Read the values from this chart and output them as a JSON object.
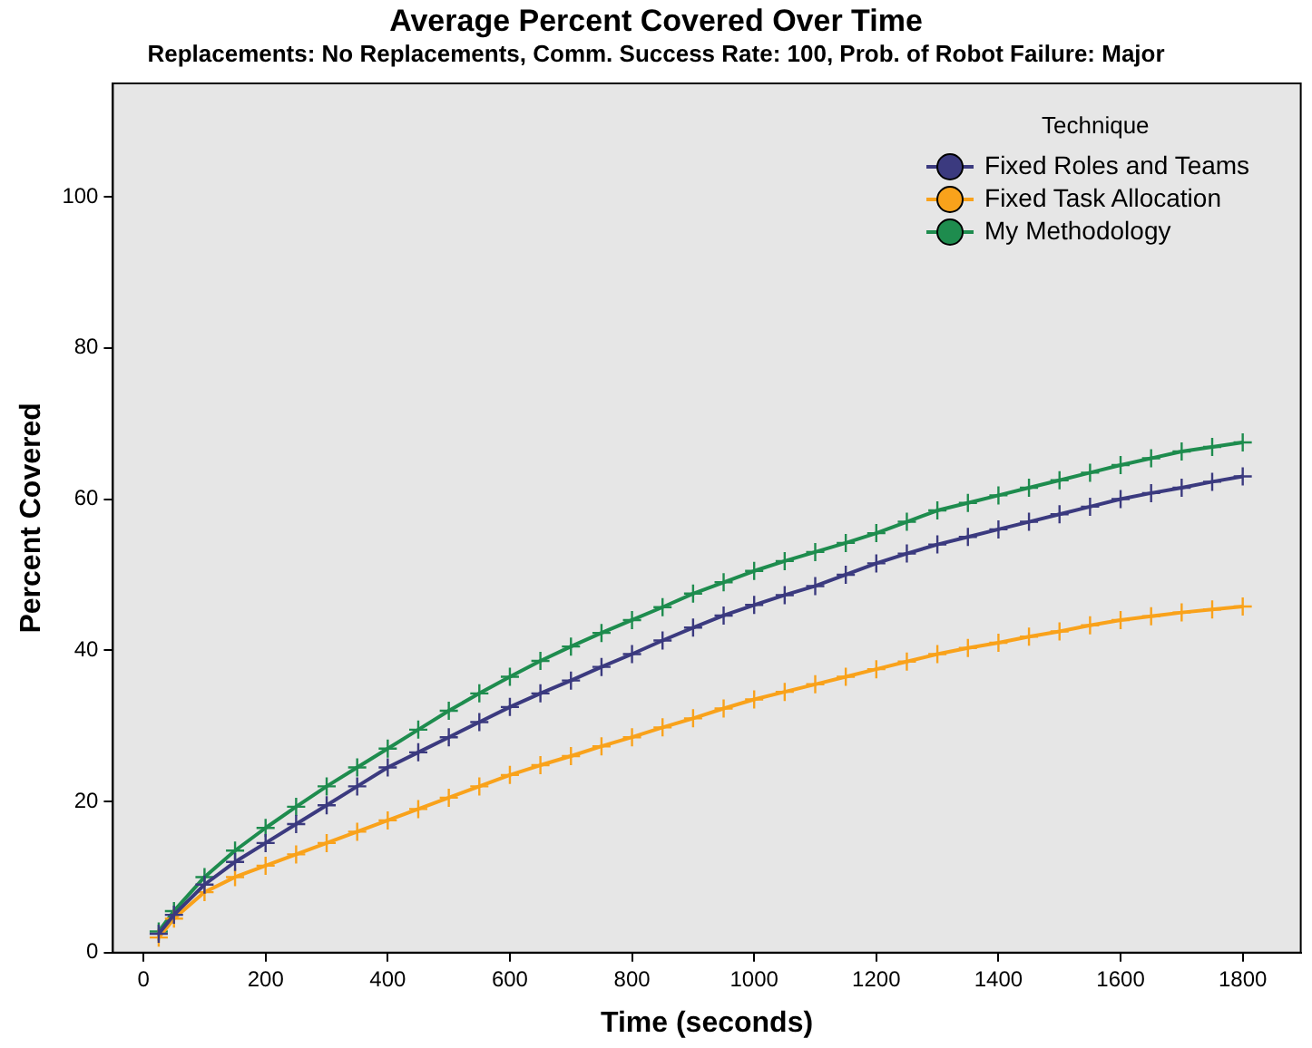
{
  "chart_data": {
    "type": "line",
    "title": "Average Percent Covered Over Time",
    "subtitle": "Replacements: No Replacements, Comm. Success Rate: 100, Prob. of Robot Failure: Major",
    "xlabel": "Time (seconds)",
    "ylabel": "Percent Covered",
    "legend_title": "Technique",
    "legend": "top right",
    "grid": false,
    "marker": "cross",
    "line_style": "solid",
    "x": [
      25,
      50,
      100,
      150,
      200,
      250,
      300,
      350,
      400,
      450,
      500,
      550,
      600,
      650,
      700,
      750,
      800,
      850,
      900,
      950,
      1000,
      1050,
      1100,
      1150,
      1200,
      1250,
      1300,
      1350,
      1400,
      1450,
      1500,
      1550,
      1600,
      1650,
      1700,
      1750,
      1800
    ],
    "xlim": [
      -50,
      1895
    ],
    "xticks": [
      0,
      200,
      400,
      600,
      800,
      1000,
      1200,
      1400,
      1600,
      1800
    ],
    "ylim": [
      0,
      115
    ],
    "yticks": [
      0,
      20,
      40,
      60,
      80,
      100
    ],
    "series": [
      {
        "name": "Fixed Roles and Teams",
        "color": "#3b3a7f",
        "values": [
          2.5,
          5,
          9,
          12,
          14.5,
          17,
          19.5,
          22,
          24.5,
          26.5,
          28.5,
          30.5,
          32.5,
          34.3,
          36,
          37.8,
          39.5,
          41.3,
          43,
          44.6,
          46,
          47.3,
          48.5,
          50,
          51.5,
          52.8,
          54,
          55,
          56,
          57,
          58,
          59,
          60,
          60.8,
          61.5,
          62.3,
          63
        ]
      },
      {
        "name": "Fixed Task Allocation",
        "color": "#f9a21b",
        "values": [
          2,
          4.5,
          8,
          10,
          11.5,
          13,
          14.5,
          16,
          17.5,
          19,
          20.5,
          22,
          23.5,
          24.8,
          26,
          27.3,
          28.5,
          29.8,
          31,
          32.3,
          33.5,
          34.5,
          35.5,
          36.5,
          37.5,
          38.5,
          39.5,
          40.3,
          41,
          41.8,
          42.5,
          43.3,
          44,
          44.5,
          45,
          45.4,
          45.8
        ]
      },
      {
        "name": "My Methodology",
        "color": "#1e8c4e",
        "values": [
          2.8,
          5.5,
          10,
          13.5,
          16.5,
          19.3,
          22,
          24.5,
          27,
          29.5,
          32,
          34.3,
          36.5,
          38.6,
          40.5,
          42.3,
          44,
          45.7,
          47.5,
          49,
          50.5,
          51.8,
          53,
          54.2,
          55.5,
          57,
          58.5,
          59.5,
          60.5,
          61.5,
          62.5,
          63.5,
          64.5,
          65.4,
          66.3,
          66.9,
          67.5
        ]
      }
    ]
  }
}
